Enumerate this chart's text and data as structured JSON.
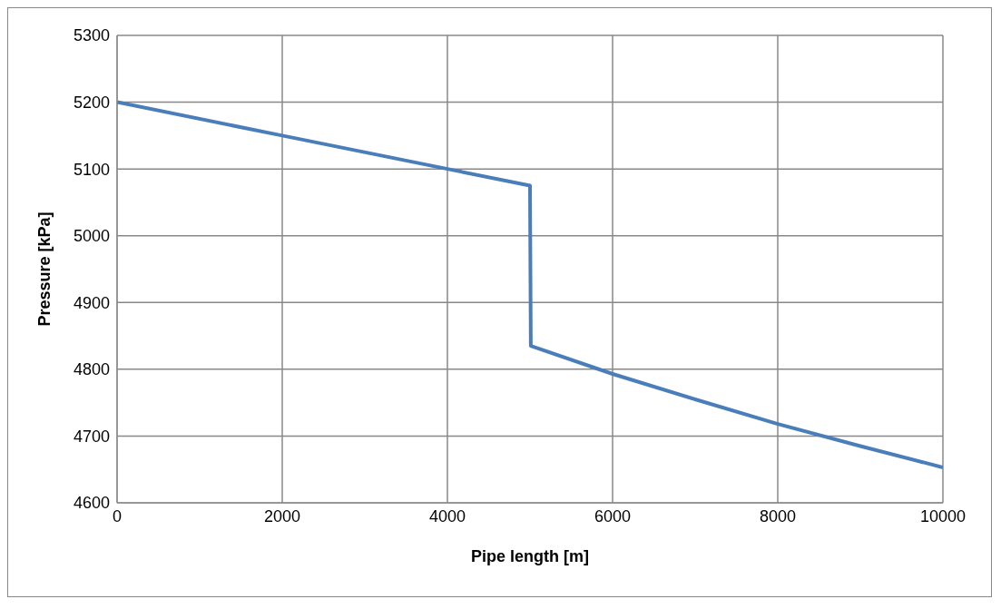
{
  "chart_data": {
    "type": "line",
    "xlabel": "Pipe length [m]",
    "ylabel": "Pressure [kPa]",
    "x": [
      0,
      2000,
      4000,
      5000,
      5010,
      6000,
      7000,
      8000,
      9000,
      10000
    ],
    "series": [
      {
        "color": "#4a7ebb",
        "values": [
          5200,
          5150,
          5100,
          5075,
          4835,
          4793,
          4755,
          4718,
          4685,
          4653
        ]
      }
    ],
    "xlim": [
      0,
      10000
    ],
    "xticks": [
      0,
      2000,
      4000,
      6000,
      8000,
      10000
    ],
    "ylim": [
      4600,
      5300
    ],
    "yticks": [
      4600,
      4700,
      4800,
      4900,
      5000,
      5100,
      5200,
      5300
    ],
    "grid": true,
    "legend": false,
    "marker": "none",
    "line_style": "solid"
  }
}
